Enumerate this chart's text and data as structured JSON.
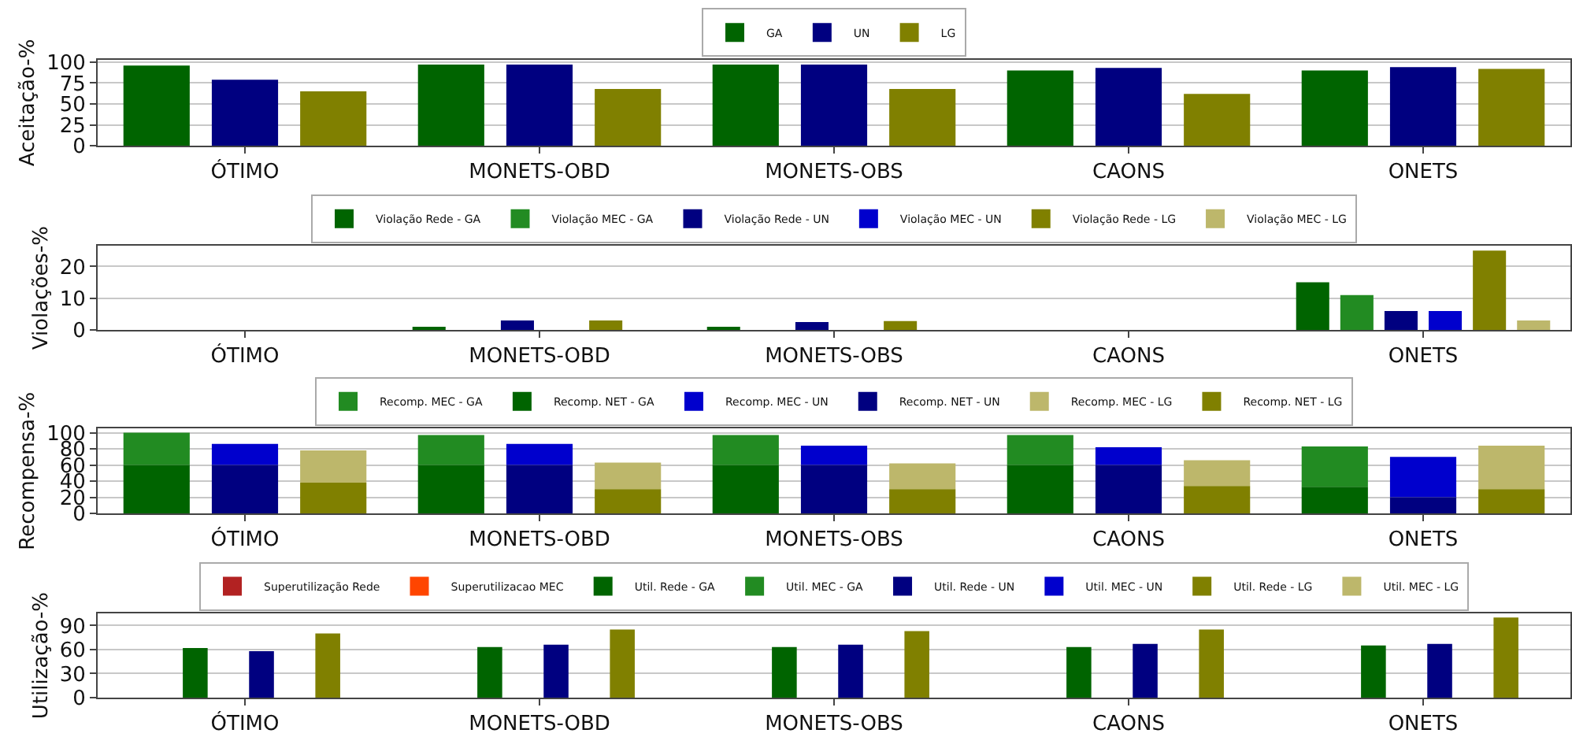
{
  "chart_data": [
    {
      "type": "bar",
      "ylabel": "Aceitação-%",
      "categories": [
        "ÓTIMO",
        "MONETS-OBD",
        "MONETS-OBS",
        "CAONS",
        "ONETS"
      ],
      "ylim": [
        0,
        103
      ],
      "yticks": [
        0,
        25,
        50,
        75,
        100
      ],
      "grid": "y",
      "legend": "top",
      "series": [
        {
          "name": "GA",
          "color": "#006400",
          "values": [
            96,
            97,
            97,
            90,
            90
          ]
        },
        {
          "name": "UN",
          "color": "#000080",
          "values": [
            79,
            97,
            97,
            93,
            94
          ]
        },
        {
          "name": "LG",
          "color": "#808000",
          "values": [
            65,
            68,
            68,
            62,
            92
          ]
        }
      ]
    },
    {
      "type": "bar",
      "ylabel": "Violações-%",
      "categories": [
        "ÓTIMO",
        "MONETS-OBD",
        "MONETS-OBS",
        "CAONS",
        "ONETS"
      ],
      "ylim": [
        0,
        26.5
      ],
      "yticks": [
        0,
        10,
        20
      ],
      "grid": "y",
      "legend": "top",
      "series": [
        {
          "name": "Violação Rede - GA",
          "color": "#006400",
          "values": [
            0,
            1,
            1,
            0,
            15
          ]
        },
        {
          "name": "Violação MEC - GA",
          "color": "#228b22",
          "values": [
            0,
            0,
            0,
            0,
            11
          ]
        },
        {
          "name": "Violação Rede - UN",
          "color": "#000080",
          "values": [
            0,
            3,
            2.5,
            0,
            6
          ]
        },
        {
          "name": "Violação MEC - UN",
          "color": "#0000cd",
          "values": [
            0,
            0,
            0,
            0,
            6
          ]
        },
        {
          "name": "Violação Rede - LG",
          "color": "#808000",
          "values": [
            0,
            3,
            2.8,
            0,
            25
          ]
        },
        {
          "name": "Violação MEC - LG",
          "color": "#bdb76b",
          "values": [
            0,
            0,
            0,
            0,
            3
          ]
        }
      ]
    },
    {
      "type": "bar",
      "ylabel": "Recompensa-%",
      "categories": [
        "ÓTIMO",
        "MONETS-OBD",
        "MONETS-OBS",
        "CAONS",
        "ONETS"
      ],
      "ylim": [
        0,
        105
      ],
      "yticks": [
        0,
        20,
        40,
        60,
        80,
        100
      ],
      "grid": "y",
      "legend": "top",
      "series": [
        {
          "name": "Recomp. MEC - GA",
          "color": "#228b22",
          "base": [
            60,
            60,
            60,
            60,
            33
          ],
          "values": [
            40,
            37,
            37,
            37,
            50
          ]
        },
        {
          "name": "Recomp. NET - GA",
          "color": "#006400",
          "values": [
            60,
            60,
            60,
            60,
            33
          ]
        },
        {
          "name": "Recomp. MEC - UN",
          "color": "#0000cd",
          "base": [
            60,
            60,
            60,
            60,
            20
          ],
          "values": [
            26,
            26,
            24,
            22,
            50
          ]
        },
        {
          "name": "Recomp. NET - UN",
          "color": "#000080",
          "values": [
            60,
            60,
            60,
            60,
            20
          ]
        },
        {
          "name": "Recomp. MEC - LG",
          "color": "#bdb76b",
          "base": [
            38,
            30,
            30,
            34,
            30
          ],
          "values": [
            40,
            33,
            32,
            32,
            54
          ]
        },
        {
          "name": "Recomp. NET - LG",
          "color": "#808000",
          "values": [
            38,
            30,
            30,
            34,
            30
          ]
        }
      ]
    },
    {
      "type": "bar",
      "ylabel": "Utilização-%",
      "categories": [
        "ÓTIMO",
        "MONETS-OBD",
        "MONETS-OBS",
        "CAONS",
        "ONETS"
      ],
      "ylim": [
        0,
        105
      ],
      "yticks": [
        0,
        30,
        60,
        90
      ],
      "grid": "y",
      "legend": "top",
      "series": [
        {
          "name": "Superutilização Rede",
          "color": "#b22222",
          "values": [
            0,
            0,
            0,
            0,
            0
          ]
        },
        {
          "name": "Superutilizacao MEC",
          "color": "#ff4500",
          "values": [
            0,
            0,
            0,
            0,
            0
          ]
        },
        {
          "name": "Util. Rede - GA",
          "color": "#006400",
          "values": [
            62,
            63,
            63,
            63,
            65
          ]
        },
        {
          "name": "Util. MEC - GA",
          "color": "#228b22",
          "values": [
            0,
            0,
            0,
            0,
            0
          ]
        },
        {
          "name": "Util. Rede - UN",
          "color": "#000080",
          "values": [
            58,
            66,
            66,
            67,
            67
          ]
        },
        {
          "name": "Util. MEC - UN",
          "color": "#0000cd",
          "values": [
            0,
            0,
            0,
            0,
            0
          ]
        },
        {
          "name": "Util. Rede - LG",
          "color": "#808000",
          "values": [
            80,
            85,
            83,
            85,
            100
          ]
        },
        {
          "name": "Util. MEC - LG",
          "color": "#bdb76b",
          "values": [
            0,
            0,
            0,
            0,
            0
          ]
        }
      ]
    }
  ]
}
